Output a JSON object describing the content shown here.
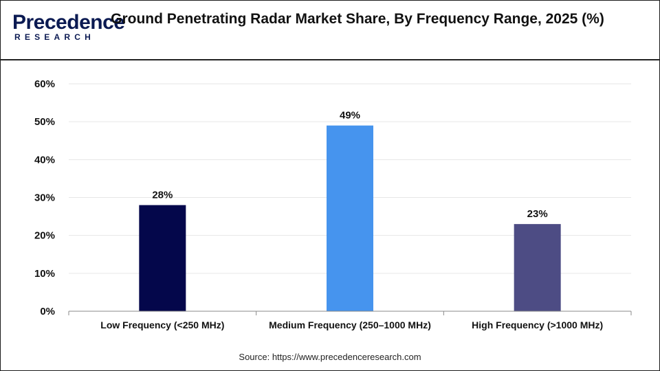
{
  "brand": {
    "name": "Precedence",
    "sub": "RESEARCH"
  },
  "title": "Ground Penetrating Radar Market Share, By Frequency Range, 2025 (%)",
  "source": "Source: https://www.precedenceresearch.com",
  "chart_data": {
    "type": "bar",
    "title": "Ground Penetrating Radar Market Share, By Frequency Range, 2025 (%)",
    "categories": [
      "Low Frequency (<250 MHz)",
      "Medium Frequency (250–1000 MHz)",
      "High Frequency (>1000 MHz)"
    ],
    "values": [
      28,
      49,
      23
    ],
    "value_labels": [
      "28%",
      "49%",
      "23%"
    ],
    "colors": [
      "#04074b",
      "#4694ee",
      "#4d4c84"
    ],
    "ylim": [
      0,
      60
    ],
    "yticks": [
      0,
      10,
      20,
      30,
      40,
      50,
      60
    ],
    "ytick_labels": [
      "0%",
      "10%",
      "20%",
      "30%",
      "40%",
      "50%",
      "60%"
    ],
    "xlabel": "",
    "ylabel": "",
    "grid": true,
    "legend": "none"
  }
}
